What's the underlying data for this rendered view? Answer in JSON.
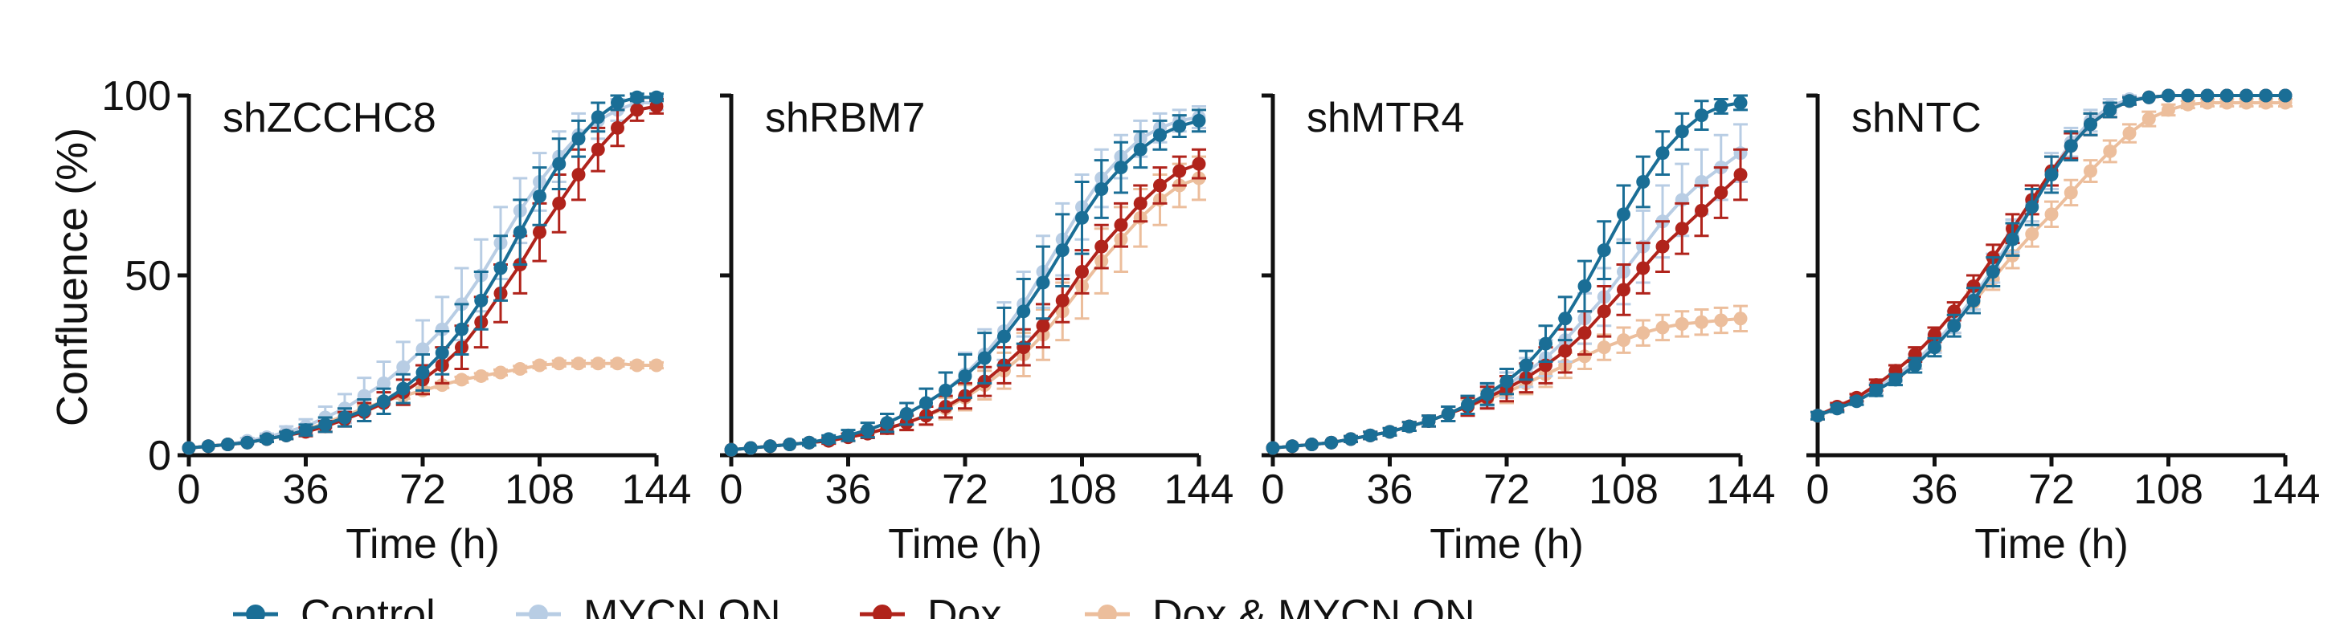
{
  "figure": {
    "y_axis_title": "Confluence (%)",
    "x_axis_title": "Time (h)"
  },
  "legend": [
    {
      "name": "Control",
      "color": "#1a6e96"
    },
    {
      "name": "MYCN ON",
      "color": "#b8cde4"
    },
    {
      "name": "Dox",
      "color": "#b0231b"
    },
    {
      "name": "Dox & MYCN ON",
      "color": "#ecbe9c"
    }
  ],
  "chart_data": [
    {
      "type": "line",
      "title": "shZCCHC8",
      "xlabel": "Time (h)",
      "ylabel": "Confluence (%)",
      "xlim": [
        0,
        144
      ],
      "ylim": [
        0,
        100
      ],
      "xticks": [
        "0",
        "36",
        "72",
        "108",
        "144"
      ],
      "yticks": [
        "0",
        "50",
        "100"
      ],
      "x": [
        0,
        6,
        12,
        18,
        24,
        30,
        36,
        42,
        48,
        54,
        60,
        66,
        72,
        78,
        84,
        90,
        96,
        102,
        108,
        114,
        120,
        126,
        132,
        138,
        144
      ],
      "series": [
        {
          "name": "Control",
          "color": "#1a6e96",
          "values": [
            2,
            2.5,
            3,
            3.5,
            4.5,
            5.5,
            7,
            8.5,
            10.5,
            12.5,
            15,
            18.5,
            23,
            28.5,
            35,
            43,
            52,
            62,
            72,
            81,
            88,
            94,
            98,
            99.5,
            99.5
          ],
          "errors": [
            0.5,
            0.5,
            0.5,
            0.5,
            0.8,
            1,
            1.5,
            2,
            2.5,
            3,
            3.5,
            4,
            5,
            6,
            7,
            8,
            9,
            9,
            8,
            7,
            5,
            4,
            2,
            1,
            1
          ]
        },
        {
          "name": "MYCN ON",
          "color": "#b8cde4",
          "values": [
            2,
            2.5,
            3,
            4,
            5,
            6.5,
            8,
            10.5,
            13,
            16.5,
            20,
            24.5,
            29.5,
            35,
            42,
            50,
            59,
            68,
            76,
            83,
            89,
            93,
            96,
            98,
            98
          ],
          "errors": [
            0.5,
            0.5,
            0.5,
            0.8,
            1,
            1.5,
            2,
            3,
            4,
            5,
            6,
            7,
            8,
            9,
            10,
            10,
            10,
            9,
            8,
            7,
            6,
            5,
            3,
            2,
            2
          ]
        },
        {
          "name": "Dox",
          "color": "#b0231b",
          "values": [
            2,
            2.5,
            3,
            3.5,
            4.5,
            5.5,
            6.5,
            8,
            10,
            12,
            14.5,
            17.5,
            21,
            25,
            30,
            37,
            45,
            53,
            62,
            70,
            78,
            85,
            91,
            96,
            97
          ],
          "errors": [
            0.5,
            0.5,
            0.5,
            0.5,
            0.8,
            1,
            1.2,
            1.5,
            2,
            2.5,
            3,
            3.5,
            4,
            5,
            6,
            7,
            8,
            8,
            8,
            8,
            7,
            6,
            5,
            3,
            2
          ]
        },
        {
          "name": "Dox & MYCN ON",
          "color": "#ecbe9c",
          "values": [
            2,
            2.5,
            3,
            3.5,
            4.5,
            5.5,
            7,
            9,
            11,
            13,
            15,
            16.5,
            18,
            19.5,
            21,
            22,
            23,
            24,
            25,
            25.5,
            25.5,
            25.5,
            25.5,
            25,
            25
          ],
          "errors": [
            0.3,
            0.3,
            0.3,
            0.3,
            0.5,
            0.5,
            0.6,
            0.7,
            0.8,
            0.8,
            0.8,
            0.8,
            0.8,
            0.8,
            0.8,
            0.8,
            0.8,
            0.8,
            0.8,
            0.8,
            0.8,
            0.8,
            0.8,
            0.8,
            0.8
          ]
        }
      ]
    },
    {
      "type": "line",
      "title": "shRBM7",
      "xlabel": "Time (h)",
      "ylabel": "",
      "xlim": [
        0,
        144
      ],
      "ylim": [
        0,
        100
      ],
      "xticks": [
        "0",
        "36",
        "72",
        "108",
        "144"
      ],
      "yticks": [],
      "x": [
        0,
        6,
        12,
        18,
        24,
        30,
        36,
        42,
        48,
        54,
        60,
        66,
        72,
        78,
        84,
        90,
        96,
        102,
        108,
        114,
        120,
        126,
        132,
        138,
        144
      ],
      "series": [
        {
          "name": "Control",
          "color": "#1a6e96",
          "values": [
            1.5,
            2,
            2.5,
            3,
            3.5,
            4.5,
            5.5,
            7,
            9,
            11.5,
            14.5,
            18,
            22,
            27,
            33,
            40,
            48,
            57,
            66,
            74,
            80,
            85,
            89,
            91.5,
            93
          ],
          "errors": [
            0.3,
            0.3,
            0.5,
            0.5,
            0.8,
            1,
            1.5,
            2,
            2.5,
            3,
            4,
            5,
            6,
            7,
            8,
            9,
            10,
            10,
            10,
            8,
            7,
            5,
            4,
            3,
            3
          ]
        },
        {
          "name": "MYCN ON",
          "color": "#b8cde4",
          "values": [
            1.5,
            2,
            2.5,
            3,
            3.5,
            4.5,
            5.5,
            7,
            9,
            11.5,
            14.5,
            18,
            22.5,
            28,
            34.5,
            42,
            51,
            60,
            69,
            77,
            83,
            88,
            91,
            93,
            94
          ],
          "errors": [
            0.3,
            0.3,
            0.5,
            0.5,
            0.8,
            1,
            1.5,
            2,
            2.5,
            3,
            4,
            5,
            6,
            7,
            8,
            9,
            10,
            10,
            9,
            8,
            6,
            5,
            4,
            3,
            3
          ]
        },
        {
          "name": "Dox",
          "color": "#b0231b",
          "values": [
            1.5,
            2,
            2.5,
            3,
            3.5,
            4,
            5,
            6,
            7.5,
            9,
            11,
            13.5,
            16.5,
            20.5,
            25,
            30,
            36,
            43,
            51,
            58,
            64,
            70,
            75,
            79,
            81
          ],
          "errors": [
            0.3,
            0.3,
            0.5,
            0.5,
            0.5,
            0.8,
            1,
            1.2,
            1.5,
            2,
            2.5,
            3,
            3.5,
            4,
            5,
            5,
            6,
            6,
            6,
            6,
            6,
            5,
            5,
            4,
            4
          ]
        },
        {
          "name": "Dox & MYCN ON",
          "color": "#ecbe9c",
          "values": [
            1.5,
            2,
            2.5,
            3,
            3.5,
            4,
            5,
            6,
            7.5,
            9,
            11,
            13,
            16,
            19.5,
            23.5,
            28,
            33.5,
            40,
            47,
            54,
            60,
            66,
            71,
            75,
            77
          ],
          "errors": [
            0.3,
            0.3,
            0.5,
            0.5,
            0.5,
            0.8,
            1,
            1.2,
            1.5,
            2,
            2.5,
            3,
            3.5,
            4,
            5,
            6,
            7,
            8,
            9,
            9,
            9,
            8,
            7,
            6,
            6
          ]
        }
      ]
    },
    {
      "type": "line",
      "title": "shMTR4",
      "xlabel": "Time (h)",
      "ylabel": "",
      "xlim": [
        0,
        144
      ],
      "ylim": [
        0,
        100
      ],
      "xticks": [
        "0",
        "36",
        "72",
        "108",
        "144"
      ],
      "yticks": [],
      "x": [
        0,
        6,
        12,
        18,
        24,
        30,
        36,
        42,
        48,
        54,
        60,
        66,
        72,
        78,
        84,
        90,
        96,
        102,
        108,
        114,
        120,
        126,
        132,
        138,
        144
      ],
      "series": [
        {
          "name": "Control",
          "color": "#1a6e96",
          "values": [
            2,
            2.5,
            3,
            3.5,
            4.5,
            5.5,
            6.5,
            8,
            9.5,
            11.5,
            14,
            17,
            20.5,
            25,
            31,
            38,
            47,
            57,
            67,
            76,
            84,
            90,
            94.5,
            97,
            98
          ],
          "errors": [
            0.3,
            0.3,
            0.5,
            0.5,
            0.8,
            1,
            1,
            1.2,
            1.5,
            2,
            2.5,
            3,
            3.5,
            4,
            5,
            6,
            7,
            8,
            8,
            7,
            6,
            5,
            4,
            2,
            2
          ]
        },
        {
          "name": "MYCN ON",
          "color": "#b8cde4",
          "values": [
            2,
            2.5,
            3,
            3.5,
            4.5,
            5.5,
            6.5,
            8,
            9.5,
            11.5,
            14,
            16.5,
            19.5,
            23,
            27,
            32,
            38,
            44,
            51,
            58,
            65,
            71,
            76,
            80,
            84
          ],
          "errors": [
            0.3,
            0.3,
            0.5,
            0.5,
            0.8,
            1,
            1,
            1.2,
            1.5,
            2,
            2.5,
            3,
            3.5,
            4,
            5,
            6,
            7,
            8,
            9,
            10,
            10,
            10,
            9,
            9,
            8
          ]
        },
        {
          "name": "Dox",
          "color": "#b0231b",
          "values": [
            2,
            2.5,
            3,
            3.5,
            4.5,
            5.5,
            6.5,
            8,
            9.5,
            11.5,
            13.5,
            16,
            18.5,
            21.5,
            25,
            29,
            34,
            40,
            46,
            52,
            58,
            63,
            68,
            73,
            78
          ],
          "errors": [
            0.3,
            0.3,
            0.5,
            0.5,
            0.8,
            1,
            1,
            1.2,
            1.5,
            2,
            2.5,
            3,
            3.5,
            4,
            5,
            6,
            6,
            7,
            7,
            7,
            7,
            7,
            7,
            7,
            7
          ]
        },
        {
          "name": "Dox & MYCN ON",
          "color": "#ecbe9c",
          "values": [
            2,
            2.5,
            3,
            3.5,
            4.5,
            5.5,
            6.5,
            8,
            9.5,
            11.5,
            13.5,
            15.5,
            17.5,
            20,
            22.5,
            25,
            27.5,
            30,
            32,
            34,
            35.5,
            36.5,
            37,
            37.5,
            38
          ],
          "errors": [
            0.3,
            0.3,
            0.5,
            0.5,
            0.8,
            1,
            1,
            1.2,
            1.5,
            2,
            2,
            2.5,
            3,
            3,
            3.5,
            3.5,
            3.5,
            3.5,
            3.5,
            3.5,
            3.5,
            3.5,
            3.5,
            3.5,
            3.5
          ]
        }
      ]
    },
    {
      "type": "line",
      "title": "shNTC",
      "xlabel": "Time (h)",
      "ylabel": "",
      "xlim": [
        0,
        144
      ],
      "ylim": [
        0,
        100
      ],
      "xticks": [
        "0",
        "36",
        "72",
        "108",
        "144"
      ],
      "yticks": [],
      "x": [
        0,
        6,
        12,
        18,
        24,
        30,
        36,
        42,
        48,
        54,
        60,
        66,
        72,
        78,
        84,
        90,
        96,
        102,
        108,
        114,
        120,
        126,
        132,
        138,
        144
      ],
      "series": [
        {
          "name": "Control",
          "color": "#1a6e96",
          "values": [
            11,
            13,
            15,
            18,
            21,
            25,
            30,
            36,
            43,
            51,
            60,
            69,
            78,
            86,
            92,
            96,
            98.5,
            99.5,
            100,
            100,
            100,
            100,
            100,
            100,
            100
          ],
          "errors": [
            1,
            1,
            1,
            1.5,
            1.5,
            2,
            2.5,
            3,
            3.5,
            4,
            4.5,
            5,
            5,
            4,
            3,
            2,
            1,
            0.5,
            0.5,
            0.5,
            0.5,
            0.5,
            0.5,
            0.5,
            0.5
          ]
        },
        {
          "name": "MYCN ON",
          "color": "#b8cde4",
          "values": [
            11,
            13,
            15.5,
            18.5,
            22,
            26,
            31,
            37,
            44,
            52,
            61,
            70,
            79,
            87,
            93,
            97,
            99,
            99.5,
            100,
            100,
            100,
            100,
            100,
            100,
            100
          ],
          "errors": [
            1,
            1,
            1,
            1.5,
            1.5,
            2,
            2.5,
            3,
            3.5,
            4,
            4.5,
            5,
            5,
            4,
            3,
            2,
            1,
            0.5,
            0.5,
            0.5,
            0.5,
            0.5,
            0.5,
            0.5,
            0.5
          ]
        },
        {
          "name": "Dox",
          "color": "#b0231b",
          "values": [
            11,
            13.5,
            16,
            19.5,
            23.5,
            28,
            33.5,
            40,
            47,
            55,
            63,
            71,
            79,
            86,
            92,
            96,
            98.5,
            99.5,
            100,
            100,
            100,
            100,
            100,
            100,
            100
          ],
          "errors": [
            1,
            1,
            1,
            1.5,
            1.5,
            2,
            2,
            2.5,
            3,
            3.5,
            4,
            4,
            4,
            3.5,
            3,
            2,
            1,
            0.5,
            0.5,
            0.5,
            0.5,
            0.5,
            0.5,
            0.5,
            0.5
          ]
        },
        {
          "name": "Dox & MYCN ON",
          "color": "#ecbe9c",
          "values": [
            11,
            13,
            15.5,
            18.5,
            22,
            26,
            31,
            36.5,
            42.5,
            49,
            55.5,
            61.5,
            67,
            73,
            79,
            84.5,
            89.5,
            93.5,
            96,
            97.5,
            98,
            98,
            98,
            98,
            98
          ],
          "errors": [
            1,
            1,
            1,
            1.5,
            1.5,
            2,
            2,
            2.5,
            3,
            3,
            3.5,
            3.5,
            3.5,
            3.5,
            3,
            3,
            2.5,
            2,
            1.5,
            1,
            1,
            1,
            1,
            1,
            1
          ]
        }
      ]
    }
  ]
}
